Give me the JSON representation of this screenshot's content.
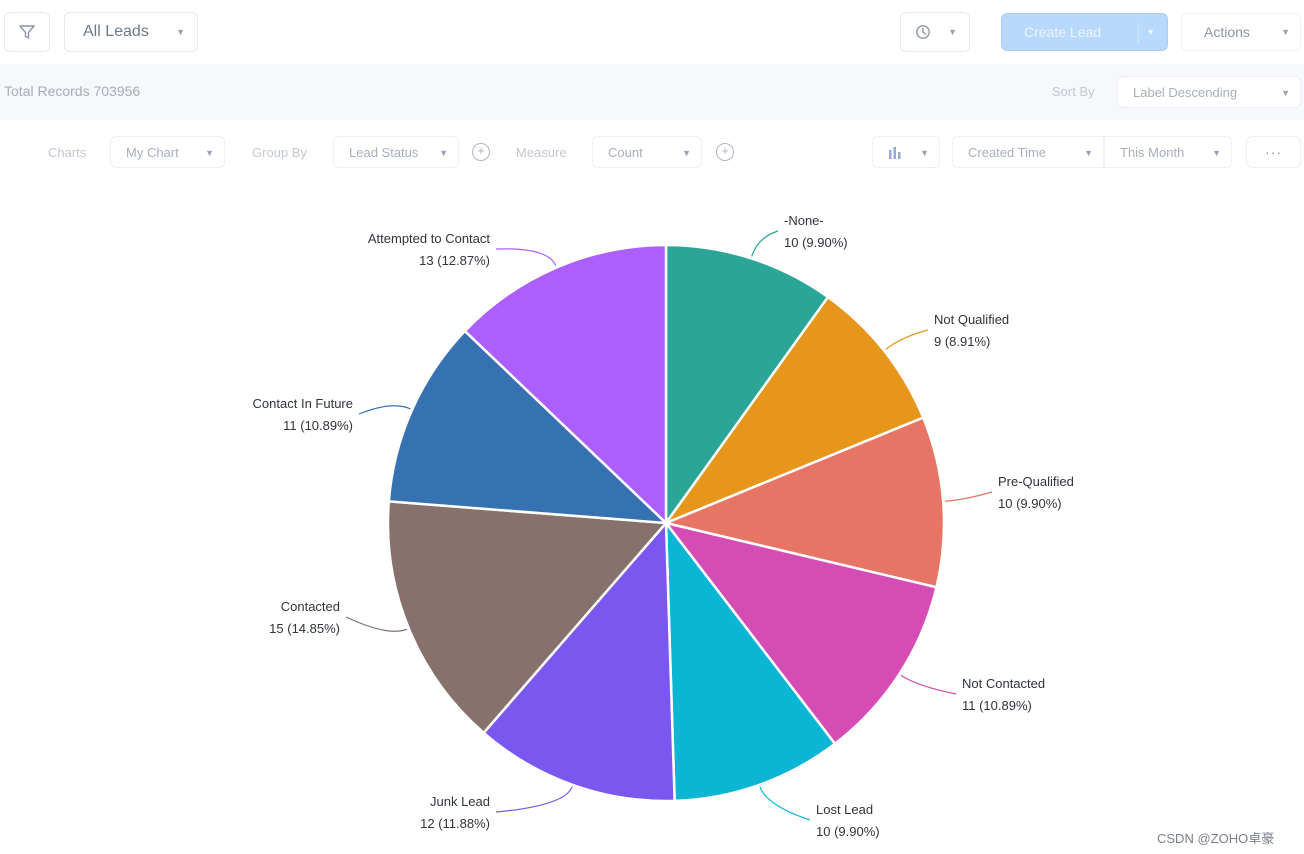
{
  "toolbar": {
    "view_select": "All Leads",
    "create_label": "Create Lead",
    "actions_label": "Actions"
  },
  "records": {
    "total": "Total Records 703956",
    "sort_label": "Sort By",
    "sort_value": "Label Descending"
  },
  "controls": {
    "charts_label": "Charts",
    "chart_select": "My Chart",
    "groupby_label": "Group By",
    "groupby_select": "Lead Status",
    "measure_label": "Measure",
    "measure_select": "Count",
    "time_field": "Created Time",
    "time_range": "This Month",
    "more": "···"
  },
  "icons": {
    "filter": "filter-icon",
    "clock": "clock-icon",
    "bar_chart": "bar-chart-icon",
    "add": "plus-circle-icon",
    "caret": "chevron-down-icon"
  },
  "chart_data": {
    "type": "pie",
    "title": "",
    "slices": [
      {
        "label": "-None-",
        "value": 10,
        "percent": "9.90%",
        "color": "#2aa597"
      },
      {
        "label": "Not Qualified",
        "value": 9,
        "percent": "8.91%",
        "color": "#e6961a"
      },
      {
        "label": "Pre-Qualified",
        "value": 10,
        "percent": "9.90%",
        "color": "#e67565"
      },
      {
        "label": "Not Contacted",
        "value": 11,
        "percent": "10.89%",
        "color": "#d64cb5"
      },
      {
        "label": "Lost Lead",
        "value": 10,
        "percent": "9.90%",
        "color": "#0bb5d4"
      },
      {
        "label": "Junk Lead",
        "value": 12,
        "percent": "11.88%",
        "color": "#7a58f0"
      },
      {
        "label": "Contacted",
        "value": 15,
        "percent": "14.85%",
        "color": "#87716d"
      },
      {
        "label": "Contact In Future",
        "value": 11,
        "percent": "10.89%",
        "color": "#3671b2"
      },
      {
        "label": "Attempted to Contact",
        "value": 13,
        "percent": "12.87%",
        "color": "#ad5ffe"
      }
    ]
  },
  "watermark": "CSDN @ZOHO卓豪"
}
